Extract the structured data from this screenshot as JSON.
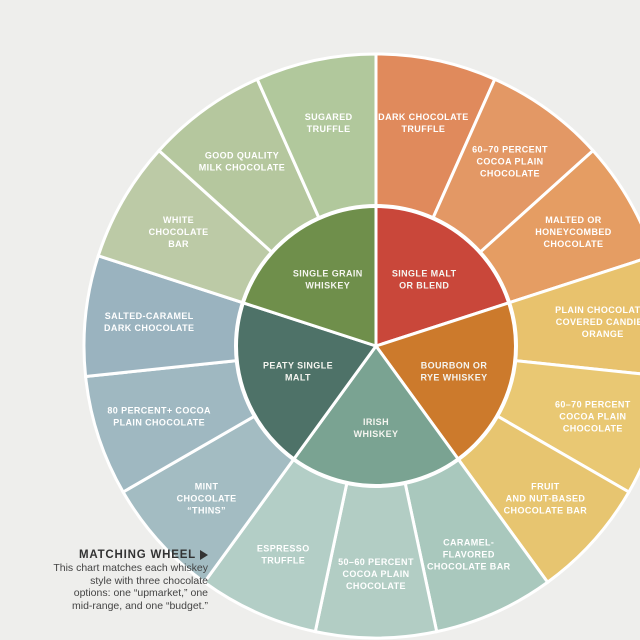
{
  "colors": {
    "page_background": "#eeeeec",
    "dividers": "#ffffff"
  },
  "caption": {
    "title": "MATCHING WHEEL",
    "arrow_icon": "right-triangle-icon",
    "lines": [
      "This chart matches each whiskey",
      "style with three chocolate",
      "options: one “upmarket,” one",
      "mid-range, and one “budget.”"
    ]
  },
  "whiskeys": [
    {
      "name": [
        "SINGLE MALT",
        "OR BLEND"
      ],
      "inner_color": "#c9473a",
      "chocolates": [
        {
          "label": [
            "DARK CHOCOLATE",
            "TRUFFLE"
          ],
          "color": "#e08a5c"
        },
        {
          "label": [
            "60–70 PERCENT",
            "COCOA PLAIN",
            "CHOCOLATE"
          ],
          "color": "#e39865"
        },
        {
          "label": [
            "MALTED OR",
            "HONEYCOMBED",
            "CHOCOLATE"
          ],
          "color": "#e59d63"
        }
      ]
    },
    {
      "name": [
        "BOURBON OR",
        "RYE WHISKEY"
      ],
      "inner_color": "#cc7a2c",
      "chocolates": [
        {
          "label": [
            "PLAIN CHOCOLATE-",
            "COVERED CANDIED",
            "ORANGE"
          ],
          "color": "#e8c26d"
        },
        {
          "label": [
            "60–70 PERCENT",
            "COCOA PLAIN",
            "CHOCOLATE"
          ],
          "color": "#e9c873"
        },
        {
          "label": [
            "FRUIT",
            "AND NUT-BASED",
            "CHOCOLATE BAR"
          ],
          "color": "#e7c570"
        }
      ]
    },
    {
      "name": [
        "IRISH",
        "WHISKEY"
      ],
      "inner_color": "#7aa392",
      "chocolates": [
        {
          "label": [
            "CARAMEL-",
            "FLAVORED",
            "CHOCOLATE BAR"
          ],
          "color": "#a9c8bd"
        },
        {
          "label": [
            "50–60 PERCENT",
            "COCOA PLAIN",
            "CHOCOLATE"
          ],
          "color": "#b2cdc4"
        },
        {
          "label": [
            "ESPRESSO",
            "TRUFFLE"
          ],
          "color": "#b3cec6"
        }
      ]
    },
    {
      "name": [
        "PEATY SINGLE",
        "MALT"
      ],
      "inner_color": "#4e7268",
      "chocolates": [
        {
          "label": [
            "MINT",
            "CHOCOLATE",
            "“THINS”"
          ],
          "color": "#a3bcc2"
        },
        {
          "label": [
            "80 PERCENT+ COCOA",
            "PLAIN CHOCOLATE"
          ],
          "color": "#9fb8c1"
        },
        {
          "label": [
            "SALTED-CARAMEL",
            "DARK CHOCOLATE"
          ],
          "color": "#9ab3bf"
        }
      ]
    },
    {
      "name": [
        "SINGLE GRAIN",
        "WHISKEY"
      ],
      "inner_color": "#6f8f4b",
      "chocolates": [
        {
          "label": [
            "WHITE",
            "CHOCOLATE",
            "BAR"
          ],
          "color": "#bccaa6"
        },
        {
          "label": [
            "GOOD QUALITY",
            "MILK CHOCOLATE"
          ],
          "color": "#b5c79e"
        },
        {
          "label": [
            "SUGARED",
            "TRUFFLE"
          ],
          "color": "#b1c89c"
        }
      ]
    }
  ]
}
